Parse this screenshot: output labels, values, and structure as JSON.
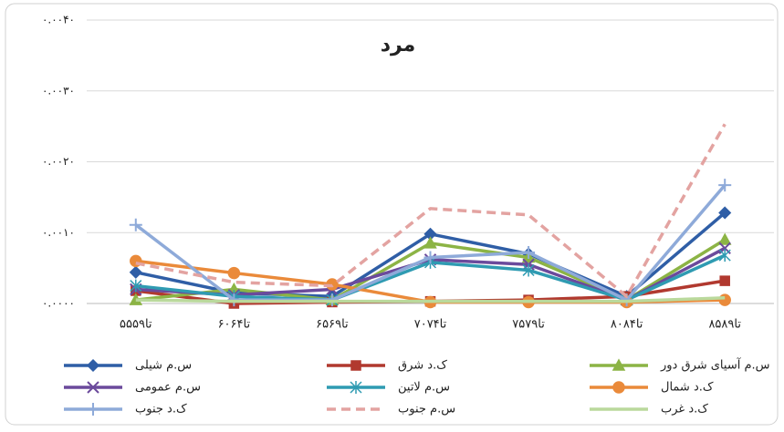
{
  "chart_data": {
    "type": "line",
    "title": "مرد",
    "categories": [
      "۵۵تا۵۹",
      "۶۰تا۶۴",
      "۶۵تا۶۹",
      "۷۰تا۷۴",
      "۷۵تا۷۹",
      "۸۰تا۸۴",
      "۸۵تا۸۹"
    ],
    "ylim": [
      0,
      0.004
    ],
    "yticks": [
      {
        "value": 0,
        "label": "۰.۰۰۰۰"
      },
      {
        "value": 0.001,
        "label": "۰.۰۰۱۰"
      },
      {
        "value": 0.002,
        "label": "۰.۰۰۲۰"
      },
      {
        "value": 0.003,
        "label": "۰.۰۰۳۰"
      },
      {
        "value": 0.004,
        "label": "۰.۰۰۴۰"
      }
    ],
    "grid": true,
    "series": [
      {
        "name": "س.م شیلی",
        "color": "#2f5ea6",
        "marker": "diamond",
        "values": [
          0.00044,
          0.00015,
          0.0001,
          0.00098,
          0.0007,
          0.0001,
          0.00128
        ]
      },
      {
        "name": "ک.د شرق",
        "color": "#b1392f",
        "marker": "square",
        "values": [
          0.00018,
          0.0,
          2e-05,
          3e-05,
          5e-05,
          0.0001,
          0.00032
        ]
      },
      {
        "name": "س.م آسیای شرق دور",
        "color": "#8cb445",
        "marker": "triangle",
        "values": [
          5e-05,
          0.0002,
          5e-05,
          0.00085,
          0.00065,
          5e-05,
          0.0009
        ]
      },
      {
        "name": "س.م عمومی",
        "color": "#6b4a9c",
        "marker": "x",
        "values": [
          0.0002,
          0.00012,
          0.0002,
          0.00062,
          0.00055,
          5e-05,
          0.00078
        ]
      },
      {
        "name": "س.م لاتین",
        "color": "#2f9bb2",
        "marker": "star",
        "values": [
          0.00025,
          0.0001,
          5e-05,
          0.00058,
          0.00047,
          5e-05,
          0.00068
        ]
      },
      {
        "name": "ک.د شمال",
        "color": "#ea8a3a",
        "marker": "circle",
        "values": [
          0.0006,
          0.00043,
          0.00027,
          2e-05,
          2e-05,
          2e-05,
          5e-05
        ]
      },
      {
        "name": "ک.د جنوب",
        "color": "#8eaad9",
        "marker": "plus",
        "values": [
          0.00111,
          5e-05,
          5e-05,
          0.00065,
          0.00072,
          5e-05,
          0.00167
        ]
      },
      {
        "name": "س.م جنوب",
        "color": "#e3a3a1",
        "marker": "none",
        "dash": true,
        "values": [
          0.00057,
          0.0003,
          0.00025,
          0.00134,
          0.00125,
          0.0001,
          0.00253
        ]
      },
      {
        "name": "ک.د غرب",
        "color": "#bad99c",
        "marker": "none",
        "values": [
          5e-05,
          3e-05,
          3e-05,
          3e-05,
          3e-05,
          3e-05,
          8e-05
        ]
      }
    ]
  }
}
